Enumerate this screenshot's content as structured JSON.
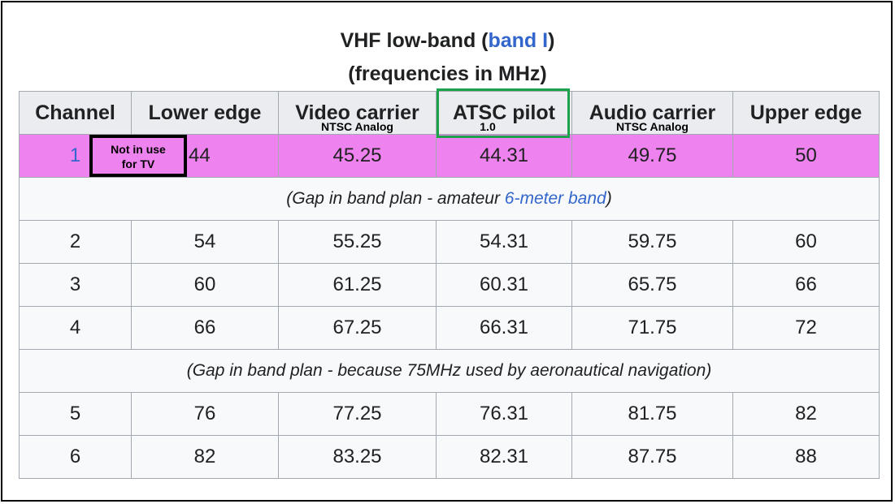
{
  "caption": {
    "line1_prefix": "VHF low-band (",
    "line1_link": "band I",
    "line1_suffix": ")",
    "line2": "(frequencies in MHz)"
  },
  "headers": {
    "channel": "Channel",
    "lower_edge": "Lower edge",
    "video_carrier": "Video carrier",
    "video_carrier_sub": "NTSC Analog",
    "atsc_pilot": "ATSC pilot",
    "atsc_pilot_sub": "1.0",
    "audio_carrier": "Audio carrier",
    "audio_carrier_sub": "NTSC Analog",
    "upper_edge": "Upper edge"
  },
  "annotation": {
    "not_in_use_line1": "Not in use",
    "not_in_use_line2": "for TV"
  },
  "rows": {
    "r1": {
      "channel": "1",
      "lower": "44",
      "video": "45.25",
      "pilot": "44.31",
      "audio": "49.75",
      "upper": "50"
    },
    "gap1": {
      "prefix": "(Gap in band plan - amateur ",
      "link": "6-meter band",
      "suffix": ")"
    },
    "r2": {
      "channel": "2",
      "lower": "54",
      "video": "55.25",
      "pilot": "54.31",
      "audio": "59.75",
      "upper": "60"
    },
    "r3": {
      "channel": "3",
      "lower": "60",
      "video": "61.25",
      "pilot": "60.31",
      "audio": "65.75",
      "upper": "66"
    },
    "r4": {
      "channel": "4",
      "lower": "66",
      "video": "67.25",
      "pilot": "66.31",
      "audio": "71.75",
      "upper": "72"
    },
    "gap2": {
      "text": "(Gap in band plan - because 75MHz used by aeronautical navigation)"
    },
    "r5": {
      "channel": "5",
      "lower": "76",
      "video": "77.25",
      "pilot": "76.31",
      "audio": "81.75",
      "upper": "82"
    },
    "r6": {
      "channel": "6",
      "lower": "82",
      "video": "83.25",
      "pilot": "82.31",
      "audio": "87.75",
      "upper": "88"
    }
  },
  "colors": {
    "channel1_highlight": "#ee82ee",
    "atsc_box_border": "#1aa34a",
    "link": "#3366cc",
    "header_bg": "#eaecf0",
    "cell_bg": "#f8f9fa"
  }
}
